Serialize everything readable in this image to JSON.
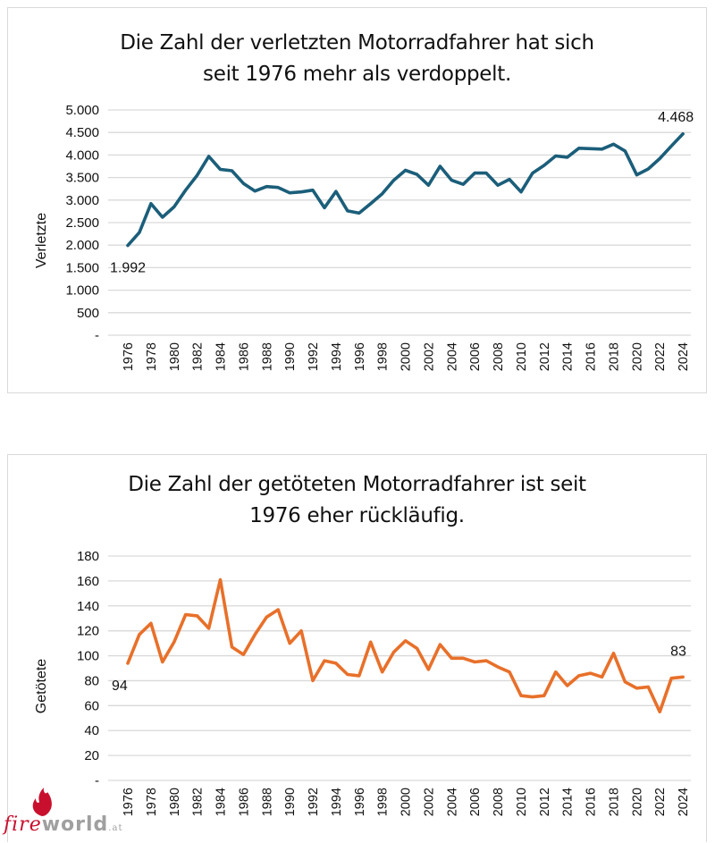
{
  "chart_data": [
    {
      "type": "line",
      "title": "Die Zahl der verletzten Motorradfahrer hat sich seit 1976 mehr als verdoppelt.",
      "title_lines": [
        "Die Zahl der verletzten Motorradfahrer hat sich",
        "seit 1976 mehr als verdoppelt."
      ],
      "xlabel": "",
      "ylabel": "Verletzte",
      "ylim": [
        0,
        5000
      ],
      "yticks": [
        0,
        500,
        1000,
        1500,
        2000,
        2500,
        3000,
        3500,
        4000,
        4500,
        5000
      ],
      "ytick_labels": [
        "-",
        "500",
        "1.000",
        "1.500",
        "2.000",
        "2.500",
        "3.000",
        "3.500",
        "4.000",
        "4.500",
        "5.000"
      ],
      "xtick_labels": [
        "1976",
        "1978",
        "1980",
        "1982",
        "1984",
        "1986",
        "1988",
        "1990",
        "1992",
        "1994",
        "1996",
        "1998",
        "2000",
        "2002",
        "2004",
        "2006",
        "2008",
        "2010",
        "2012",
        "2014",
        "2016",
        "2018",
        "2020",
        "2022",
        "2024"
      ],
      "grid": true,
      "legend": "none",
      "color": "#1b5e7a",
      "x": [
        1976,
        1977,
        1978,
        1979,
        1980,
        1981,
        1982,
        1983,
        1984,
        1985,
        1986,
        1987,
        1988,
        1989,
        1990,
        1991,
        1992,
        1993,
        1994,
        1995,
        1996,
        1997,
        1998,
        1999,
        2000,
        2001,
        2002,
        2003,
        2004,
        2005,
        2006,
        2007,
        2008,
        2009,
        2010,
        2011,
        2012,
        2013,
        2014,
        2015,
        2016,
        2017,
        2018,
        2019,
        2020,
        2021,
        2022,
        2023,
        2024
      ],
      "series": [
        {
          "name": "Verletzte",
          "values": [
            1992,
            2280,
            2920,
            2620,
            2850,
            3220,
            3550,
            3970,
            3680,
            3650,
            3370,
            3200,
            3300,
            3280,
            3160,
            3180,
            3220,
            2830,
            3190,
            2760,
            2710,
            2920,
            3140,
            3440,
            3660,
            3570,
            3330,
            3750,
            3440,
            3350,
            3600,
            3600,
            3330,
            3460,
            3180,
            3600,
            3770,
            3980,
            3950,
            4150,
            4140,
            4130,
            4240,
            4090,
            3560,
            3690,
            3920,
            4200,
            4468
          ]
        }
      ],
      "annotations": [
        {
          "x": 1976,
          "text": "1.992"
        },
        {
          "x": 2024,
          "text": "4.468"
        }
      ]
    },
    {
      "type": "line",
      "title": "Die Zahl der getöteten Motorradfahrer ist seit 1976 eher rückläufig.",
      "title_lines": [
        "Die Zahl der getöteten Motorradfahrer ist seit",
        "1976 eher rückläufig."
      ],
      "xlabel": "",
      "ylabel": "Getötete",
      "ylim": [
        0,
        180
      ],
      "yticks": [
        0,
        20,
        40,
        60,
        80,
        100,
        120,
        140,
        160,
        180
      ],
      "ytick_labels": [
        "-",
        "20",
        "40",
        "60",
        "80",
        "100",
        "120",
        "140",
        "160",
        "180"
      ],
      "xtick_labels": [
        "1976",
        "1978",
        "1980",
        "1982",
        "1984",
        "1986",
        "1988",
        "1990",
        "1992",
        "1994",
        "1996",
        "1998",
        "2000",
        "2002",
        "2004",
        "2006",
        "2008",
        "2010",
        "2012",
        "2014",
        "2016",
        "2018",
        "2020",
        "2022",
        "2024"
      ],
      "grid": true,
      "legend": "none",
      "color": "#e8702a",
      "x": [
        1976,
        1977,
        1978,
        1979,
        1980,
        1981,
        1982,
        1983,
        1984,
        1985,
        1986,
        1987,
        1988,
        1989,
        1990,
        1991,
        1992,
        1993,
        1994,
        1995,
        1996,
        1997,
        1998,
        1999,
        2000,
        2001,
        2002,
        2003,
        2004,
        2005,
        2006,
        2007,
        2008,
        2009,
        2010,
        2011,
        2012,
        2013,
        2014,
        2015,
        2016,
        2017,
        2018,
        2019,
        2020,
        2021,
        2022,
        2023,
        2024
      ],
      "series": [
        {
          "name": "Getötete",
          "values": [
            94,
            117,
            126,
            95,
            111,
            133,
            132,
            122,
            161,
            107,
            101,
            117,
            131,
            137,
            110,
            120,
            80,
            96,
            94,
            85,
            84,
            111,
            87,
            103,
            112,
            106,
            89,
            109,
            98,
            98,
            95,
            96,
            91,
            87,
            68,
            67,
            68,
            87,
            76,
            84,
            86,
            83,
            102,
            79,
            74,
            75,
            55,
            82,
            83
          ]
        }
      ],
      "annotations": [
        {
          "x": 1976,
          "text": "94"
        },
        {
          "x": 2024,
          "text": "83"
        }
      ]
    }
  ],
  "watermark": {
    "part1": "fire",
    "part2": "world",
    "part3": ".at"
  }
}
